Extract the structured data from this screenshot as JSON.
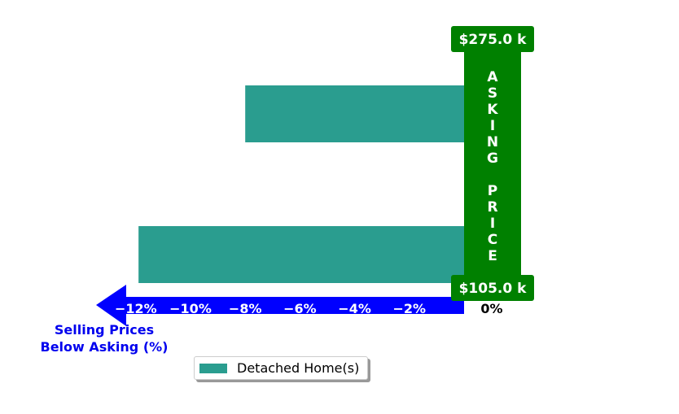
{
  "chart_data": {
    "type": "bar",
    "orientation": "horizontal",
    "series": [
      {
        "name": "Detached Home(s)",
        "color": "#2a9d8f",
        "values": [
          -8.0,
          0.2,
          -11.9
        ]
      }
    ],
    "x_ticks": [
      "−12%",
      "−10%",
      "−8%",
      "−6%",
      "−4%",
      "−2%",
      "0%"
    ],
    "x_tick_values": [
      -12,
      -10,
      -8,
      -6,
      -4,
      -2,
      0
    ],
    "xlim": [
      -13.5,
      2
    ],
    "xlabel_lines": [
      "Selling Prices",
      "Below Asking (%)"
    ],
    "asking_price_letters": [
      "A",
      "S",
      "K",
      "I",
      "N",
      "G",
      "",
      "P",
      "R",
      "I",
      "C",
      "E"
    ],
    "price_top_label": "$275.0 k",
    "price_bottom_label": "$105.0 k",
    "legend_placement": "bottom-center",
    "grid": false,
    "colors": {
      "bar": "#2a9d8f",
      "asking_band": "#008000",
      "axis_arrow": "#0000ff",
      "xlabel": "#0000ee"
    }
  },
  "legend": {
    "label": "Detached Home(s)"
  }
}
